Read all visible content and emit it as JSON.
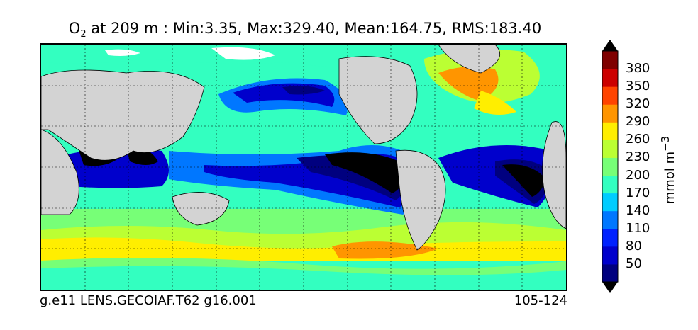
{
  "title": {
    "variable": "O",
    "variable_sub": "2",
    "rest": " at 209 m : Min:3.35, Max:329.40, Mean:164.75, RMS:183.40"
  },
  "footer": {
    "left": "g.e11 LENS.GECOIAF.T62 g16.001",
    "right": "105-124"
  },
  "colorbar": {
    "unit": "mmol m",
    "unit_exp": "−3",
    "tick_labels": [
      "50",
      "80",
      "110",
      "140",
      "170",
      "200",
      "230",
      "260",
      "290",
      "320",
      "350",
      "380"
    ],
    "colors": [
      "#00007f",
      "#0000cc",
      "#0022ff",
      "#0077ff",
      "#00ccff",
      "#33ffc0",
      "#77ff77",
      "#bbff33",
      "#ffee00",
      "#ff9500",
      "#ff4400",
      "#cc0000",
      "#7f0000"
    ],
    "land_color": "#d3d3d3"
  }
}
